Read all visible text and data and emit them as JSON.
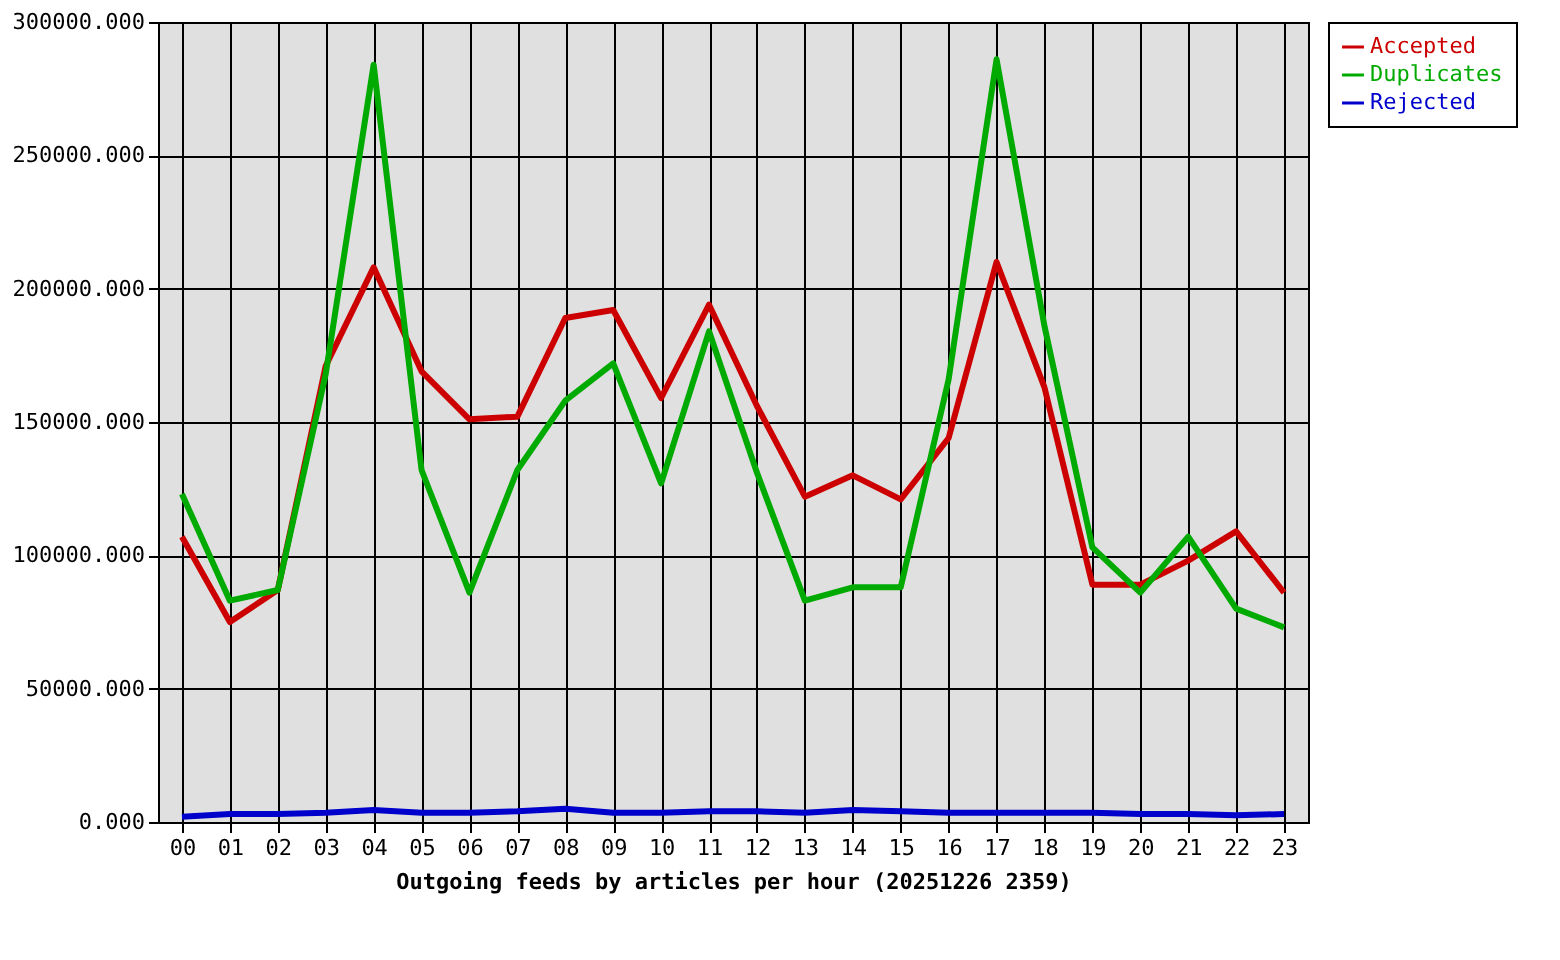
{
  "chart_data": {
    "type": "line",
    "xlabel": "Outgoing feeds by articles per hour (20251226 2359)",
    "categories": [
      "00",
      "01",
      "02",
      "03",
      "04",
      "05",
      "06",
      "07",
      "08",
      "09",
      "10",
      "11",
      "12",
      "13",
      "14",
      "15",
      "16",
      "17",
      "18",
      "19",
      "20",
      "21",
      "22",
      "23"
    ],
    "series": [
      {
        "name": "Accepted",
        "color": "#cc0000",
        "values": [
          107000,
          75000,
          87000,
          171000,
          208000,
          169000,
          151000,
          152000,
          189000,
          192000,
          159000,
          194000,
          156000,
          122000,
          130000,
          121000,
          144000,
          210000,
          163000,
          89000,
          89000,
          98000,
          109000,
          86000
        ]
      },
      {
        "name": "Duplicates",
        "color": "#00aa00",
        "values": [
          123000,
          83000,
          87000,
          168000,
          284000,
          132000,
          86000,
          132000,
          158000,
          172000,
          127000,
          184000,
          131000,
          83000,
          88000,
          88000,
          166000,
          286000,
          186000,
          103000,
          86000,
          107000,
          80000,
          73000
        ]
      },
      {
        "name": "Rejected",
        "color": "#0000cc",
        "values": [
          2000,
          3000,
          3000,
          3500,
          4500,
          3500,
          3500,
          4000,
          5000,
          3500,
          3500,
          4000,
          4000,
          3500,
          4500,
          4000,
          3500,
          3500,
          3500,
          3500,
          3000,
          3000,
          2500,
          3000
        ]
      }
    ],
    "ylim": [
      0,
      300000
    ],
    "yticks": [
      {
        "value": 0,
        "label": "0.000"
      },
      {
        "value": 50000,
        "label": "50000.000"
      },
      {
        "value": 100000,
        "label": "100000.000"
      },
      {
        "value": 150000,
        "label": "150000.000"
      },
      {
        "value": 200000,
        "label": "200000.000"
      },
      {
        "value": 250000,
        "label": "250000.000"
      },
      {
        "value": 300000,
        "label": "300000.000"
      }
    ],
    "grid": true,
    "legend": "top right",
    "marker": "none",
    "line_style": "solid"
  }
}
